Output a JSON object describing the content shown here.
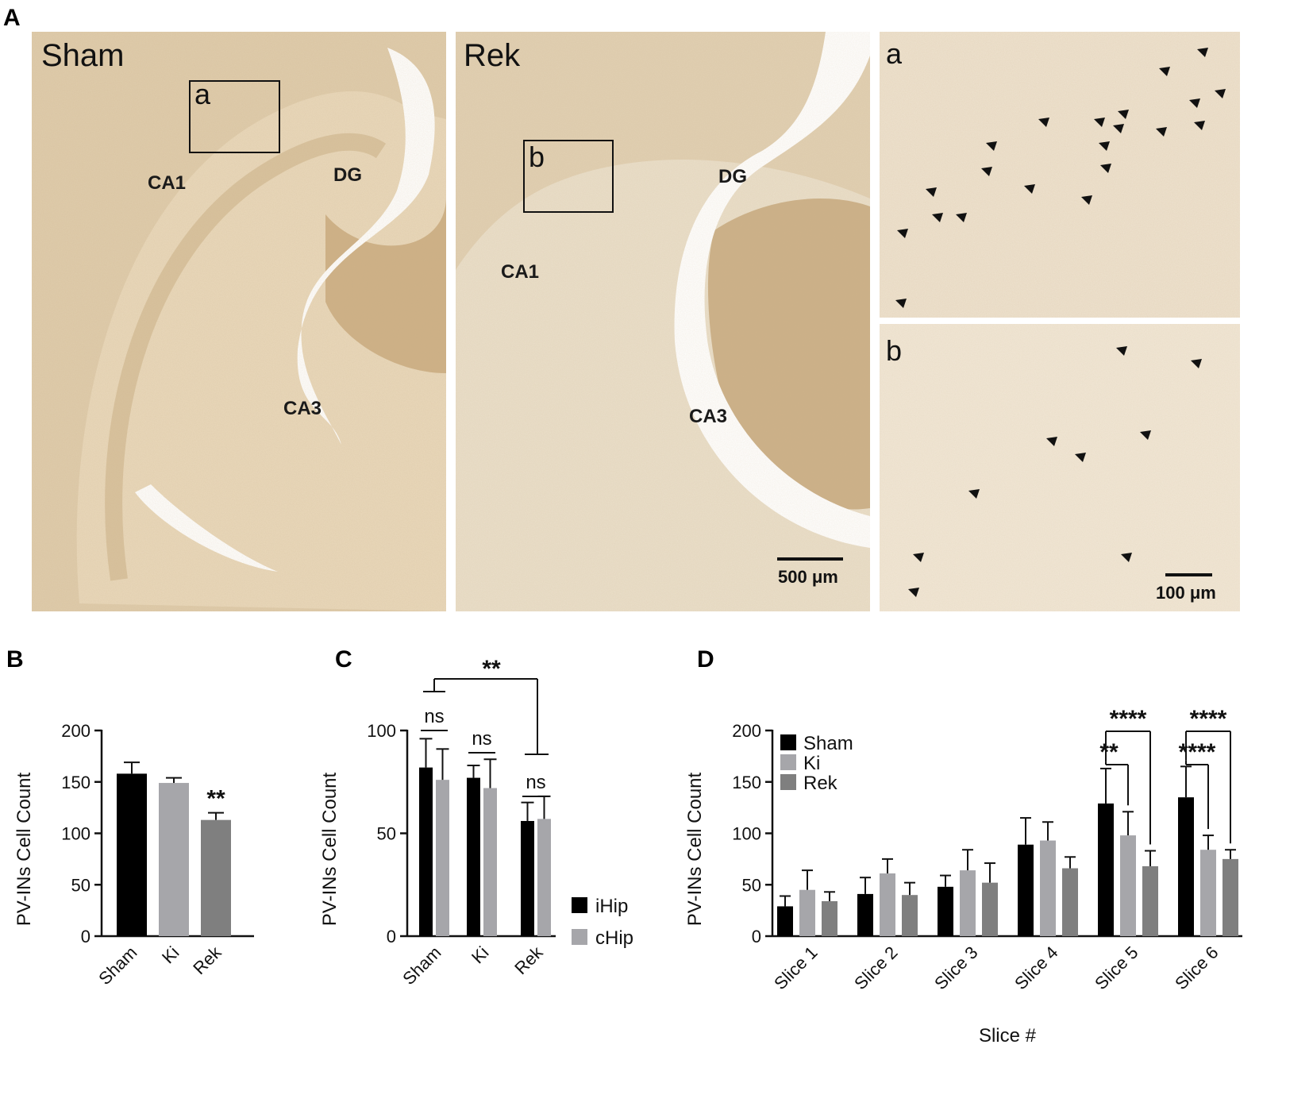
{
  "panel_labels": {
    "A": "A",
    "B": "B",
    "C": "C",
    "D": "D"
  },
  "micrographs": {
    "sham_title": "Sham",
    "rek_title": "Rek",
    "inset_a_label": "a",
    "inset_b_label": "b",
    "zoom_a_label": "a",
    "zoom_b_label": "b",
    "regions": {
      "ca1": "CA1",
      "dg": "DG",
      "ca3": "CA3"
    },
    "scale_500": "500 μm",
    "scale_100": "100 μm",
    "colors": {
      "tissue": "#e7d8bf",
      "tissue_dark": "#c9aa7c",
      "background": "#ffffff"
    }
  },
  "chart_data": [
    {
      "id": "B",
      "type": "bar",
      "categories": [
        "Sham",
        "Ki",
        "Rek"
      ],
      "values": [
        158,
        149,
        113
      ],
      "errors": [
        11,
        5,
        7
      ],
      "colors": [
        "#000000",
        "#a6a6aa",
        "#7f7f7f"
      ],
      "ylabel": "PV-INs Cell Count",
      "ylim": [
        0,
        200
      ],
      "yticks": [
        "0",
        "50",
        "100",
        "150",
        "200"
      ],
      "annotations": [
        {
          "category": "Rek",
          "text": "**"
        }
      ]
    },
    {
      "id": "C",
      "type": "bar",
      "categories": [
        "Sham",
        "Ki",
        "Rek"
      ],
      "series": [
        {
          "name": "iHip",
          "values": [
            82,
            77,
            56
          ],
          "errors": [
            14,
            6,
            9
          ],
          "color": "#000000"
        },
        {
          "name": "cHip",
          "values": [
            76,
            72,
            57
          ],
          "errors": [
            15,
            14,
            11
          ],
          "color": "#a6a6aa"
        }
      ],
      "ylabel": "PV-INs Cell Count",
      "ylim": [
        0,
        100
      ],
      "yticks": [
        "0",
        "50",
        "100"
      ],
      "pair_annotations": [
        "ns",
        "ns",
        "ns"
      ],
      "bracket_annotation": "**",
      "legend_position": "right"
    },
    {
      "id": "D",
      "type": "bar",
      "categories": [
        "Slice 1",
        "Slice 2",
        "Slice 3",
        "Slice 4",
        "Slice 5",
        "Slice 6"
      ],
      "series": [
        {
          "name": "Sham",
          "values": [
            29,
            41,
            48,
            89,
            129,
            135
          ],
          "errors": [
            10,
            16,
            11,
            26,
            34,
            30
          ],
          "color": "#000000"
        },
        {
          "name": "Ki",
          "values": [
            45,
            61,
            64,
            93,
            98,
            84
          ],
          "errors": [
            19,
            14,
            20,
            18,
            23,
            14
          ],
          "color": "#a6a6aa"
        },
        {
          "name": "Rek",
          "values": [
            34,
            40,
            52,
            66,
            68,
            75
          ],
          "errors": [
            9,
            12,
            19,
            11,
            15,
            9
          ],
          "color": "#7f7f7f"
        }
      ],
      "xlabel": "Slice #",
      "ylabel": "PV-INs Cell Count",
      "ylim": [
        0,
        200
      ],
      "yticks": [
        "0",
        "50",
        "100",
        "150",
        "200"
      ],
      "legend_position": "top-left",
      "annotations": [
        {
          "slice": "Slice 5",
          "from": "Sham",
          "to": "Ki",
          "text": "**"
        },
        {
          "slice": "Slice 5",
          "from": "Sham",
          "to": "Rek",
          "text": "****"
        },
        {
          "slice": "Slice 6",
          "from": "Sham",
          "to": "Ki",
          "text": "****"
        },
        {
          "slice": "Slice 6",
          "from": "Sham",
          "to": "Rek",
          "text": "****"
        }
      ]
    }
  ]
}
